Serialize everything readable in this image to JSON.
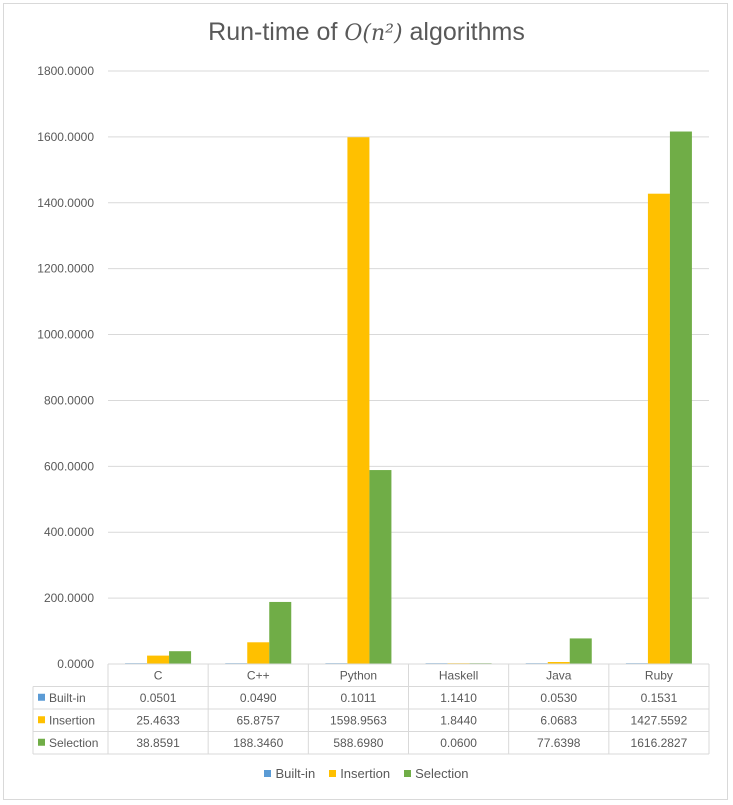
{
  "chart_data": {
    "type": "bar",
    "title_prefix": "Run-time of ",
    "title_math": "O(n²)",
    "title_suffix": " algorithms",
    "categories": [
      "C",
      "C++",
      "Python",
      "Haskell",
      "Java",
      "Ruby"
    ],
    "series": [
      {
        "name": "Built-in",
        "color": "#5b9bd5",
        "values": [
          0.0501,
          0.049,
          0.1011,
          1.141,
          0.053,
          0.1531
        ],
        "labels": [
          "0.0501",
          "0.0490",
          "0.1011",
          "1.1410",
          "0.0530",
          "0.1531"
        ]
      },
      {
        "name": "Insertion",
        "color": "#ffc000",
        "values": [
          25.4633,
          65.8757,
          1598.9563,
          1.844,
          6.0683,
          1427.5592
        ],
        "labels": [
          "25.4633",
          "65.8757",
          "1598.9563",
          "1.8440",
          "6.0683",
          "1427.5592"
        ]
      },
      {
        "name": "Selection",
        "color": "#70ad47",
        "values": [
          38.8591,
          188.346,
          588.698,
          0.06,
          77.6398,
          1616.2827
        ],
        "labels": [
          "38.8591",
          "188.3460",
          "588.6980",
          "0.0600",
          "77.6398",
          "1616.2827"
        ]
      }
    ],
    "ylim": [
      0,
      1800
    ],
    "yticks": [
      "0.0000",
      "200.0000",
      "400.0000",
      "600.0000",
      "800.0000",
      "1000.0000",
      "1200.0000",
      "1400.0000",
      "1600.0000",
      "1800.0000"
    ],
    "grid": true,
    "legend_position": "bottom",
    "data_table": true
  }
}
